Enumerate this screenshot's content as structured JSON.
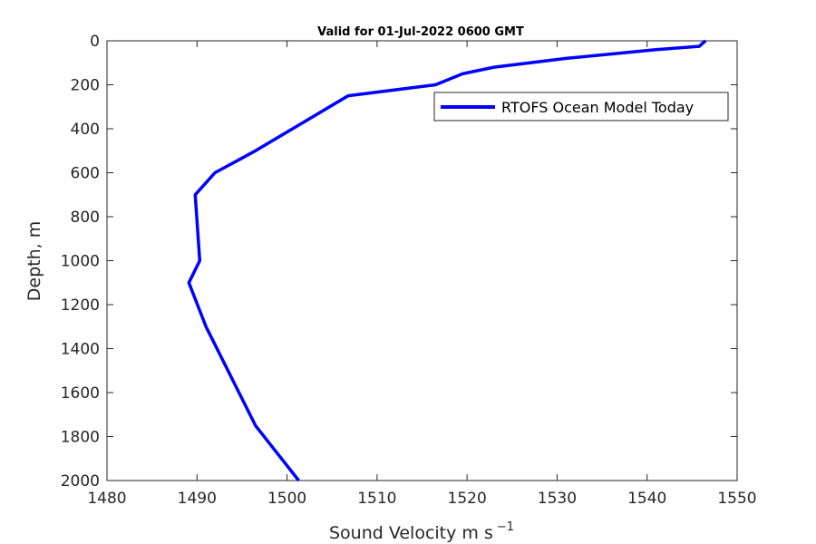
{
  "chart_data": {
    "type": "line",
    "title": "Valid for 01-Jul-2022 0600 GMT",
    "xlabel_main": "Sound Velocity m s",
    "xlabel_exp": "−1",
    "ylabel": "Depth, m",
    "xlim": [
      1480,
      1550
    ],
    "ylim": [
      0,
      2000
    ],
    "y_reversed": true,
    "xticks": [
      1480,
      1490,
      1500,
      1510,
      1520,
      1530,
      1540,
      1550
    ],
    "yticks": [
      0,
      200,
      400,
      600,
      800,
      1000,
      1200,
      1400,
      1600,
      1800,
      2000
    ],
    "legend_location": "top-right",
    "grid": false,
    "series": [
      {
        "name": "RTOFS Ocean Model Today",
        "color": "#0000ff",
        "x": [
          1546.5,
          1546.2,
          1545.8,
          1541.0,
          1531.0,
          1523.0,
          1519.5,
          1516.5,
          1506.8,
          1496.5,
          1492.0,
          1489.8,
          1490.3,
          1489.1,
          1491.0,
          1496.5,
          1501.3
        ],
        "y": [
          0,
          10,
          25,
          40,
          80,
          120,
          150,
          200,
          250,
          500,
          600,
          700,
          1000,
          1100,
          1300,
          1750,
          2000
        ]
      }
    ]
  }
}
